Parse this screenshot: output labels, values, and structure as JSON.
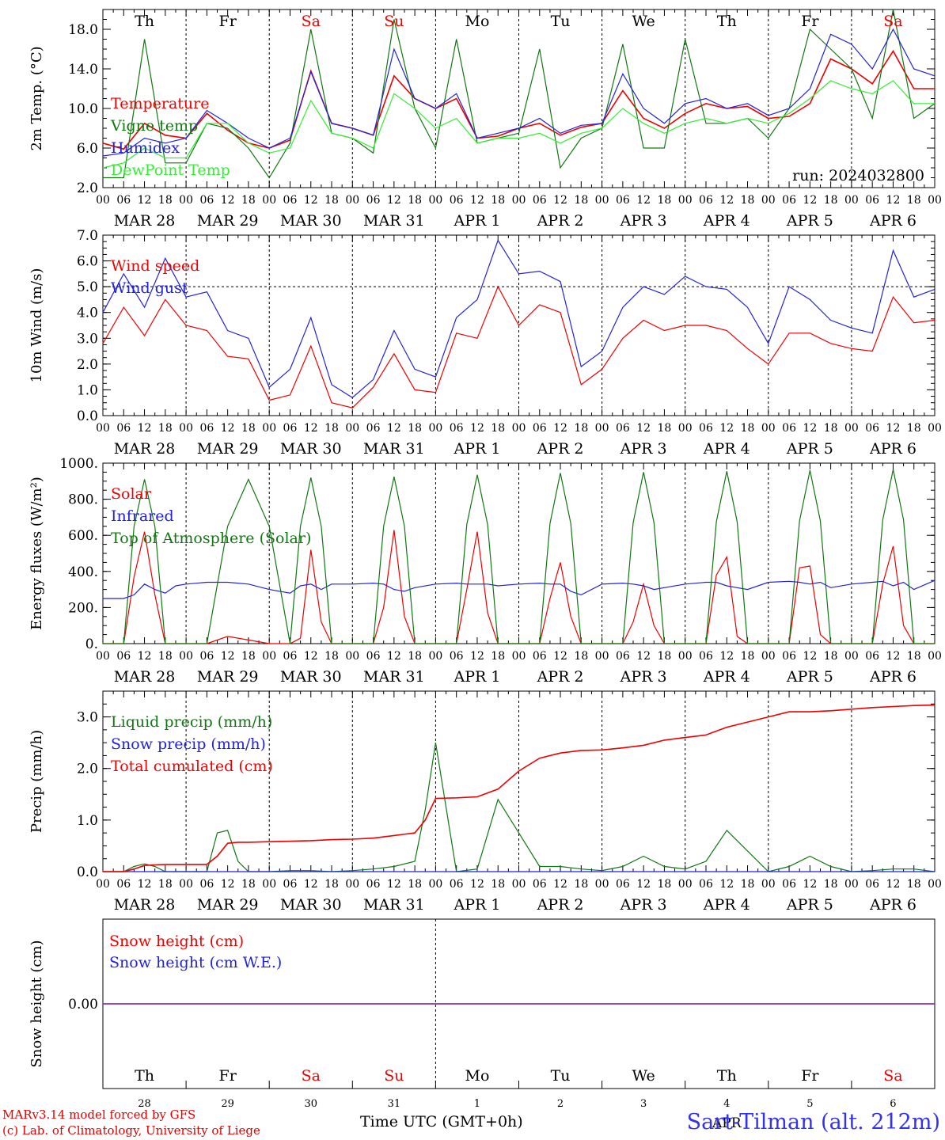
{
  "chart_data": [
    {
      "type": "line",
      "ylabel": "2m Temp. (°C)",
      "ylim": [
        2.0,
        20.0
      ],
      "yticks": [
        2.0,
        6.0,
        10.0,
        14.0,
        18.0
      ],
      "ytick_labels": [
        "2.0",
        "6.0",
        "10.0",
        "14.0",
        "18.0"
      ],
      "annotation": "run: 2024032800",
      "x_hours": [
        0,
        6,
        12,
        18,
        24,
        30,
        36,
        42,
        48,
        54,
        60,
        66,
        72,
        78,
        84,
        90,
        96,
        102,
        108,
        114,
        120,
        126,
        132,
        138,
        144,
        150,
        156,
        162,
        168,
        174,
        180,
        186,
        192,
        198,
        204,
        210,
        216,
        222,
        228,
        234,
        240
      ],
      "series": [
        {
          "name": "Temperature",
          "color": "#ee0000",
          "values": [
            6.5,
            5.9,
            8.5,
            7.3,
            7.0,
            9.5,
            7.8,
            6.5,
            6.0,
            6.8,
            13.8,
            8.5,
            8.0,
            7.3,
            13.3,
            11.0,
            10.0,
            11.0,
            7.0,
            7.2,
            8.0,
            8.5,
            7.3,
            8.1,
            8.5,
            11.8,
            9.0,
            8.0,
            9.5,
            10.5,
            10.0,
            10.2,
            9.0,
            9.2,
            10.5,
            15.0,
            14.0,
            12.5,
            15.8,
            12.0,
            12.0
          ]
        },
        {
          "name": "Vigne temp",
          "color": "#117711",
          "values": [
            3.0,
            3.0,
            17.0,
            4.5,
            4.5,
            8.5,
            8.0,
            6.0,
            3.0,
            6.5,
            18.0,
            7.5,
            7.0,
            5.5,
            19.0,
            10.0,
            6.0,
            17.0,
            6.5,
            7.0,
            7.5,
            16.0,
            4.0,
            7.0,
            8.0,
            16.5,
            6.0,
            6.0,
            17.0,
            8.5,
            8.5,
            9.0,
            7.0,
            10.0,
            18.0,
            16.0,
            14.0,
            9.0,
            20.0,
            9.0,
            10.5
          ]
        },
        {
          "name": "Humidex",
          "color": "#2222dd",
          "values": [
            5.2,
            5.5,
            7.0,
            6.5,
            7.0,
            9.8,
            8.5,
            7.0,
            6.0,
            7.0,
            13.7,
            8.5,
            8.0,
            7.3,
            16.0,
            11.0,
            10.0,
            11.5,
            7.0,
            7.5,
            8.0,
            9.0,
            7.5,
            8.3,
            8.5,
            13.5,
            10.0,
            8.5,
            10.5,
            11.0,
            10.0,
            10.5,
            9.3,
            10.0,
            12.0,
            17.5,
            16.5,
            14.0,
            18.0,
            14.0,
            13.3
          ]
        },
        {
          "name": "DewPoint Temp",
          "color": "#33ee33",
          "values": [
            4.0,
            4.5,
            6.0,
            5.0,
            5.0,
            8.5,
            8.5,
            6.5,
            5.5,
            6.0,
            10.8,
            7.5,
            7.0,
            6.0,
            11.5,
            10.0,
            8.0,
            9.0,
            6.5,
            7.0,
            7.0,
            7.5,
            6.5,
            7.5,
            8.0,
            10.0,
            8.5,
            7.5,
            8.5,
            9.0,
            8.5,
            9.0,
            8.5,
            9.5,
            11.0,
            12.8,
            12.0,
            11.5,
            12.8,
            10.5,
            10.5
          ]
        }
      ]
    },
    {
      "type": "line",
      "ylabel": "10m Wind (m/s)",
      "ylim": [
        0.0,
        7.0
      ],
      "yticks": [
        0,
        1,
        2,
        3,
        4,
        5,
        6,
        7
      ],
      "ytick_labels": [
        "0.0",
        "1.0",
        "2.0",
        "3.0",
        "4.0",
        "5.0",
        "6.0",
        "7.0"
      ],
      "reference_line": 5.0,
      "x_hours": [
        0,
        6,
        12,
        18,
        24,
        30,
        36,
        42,
        48,
        54,
        60,
        66,
        72,
        78,
        84,
        90,
        96,
        102,
        108,
        114,
        120,
        126,
        132,
        138,
        144,
        150,
        156,
        162,
        168,
        174,
        180,
        186,
        192,
        198,
        204,
        210,
        216,
        222,
        228,
        234,
        240
      ],
      "series": [
        {
          "name": "Wind speed",
          "color": "#ee0000",
          "values": [
            2.8,
            4.2,
            3.1,
            4.5,
            3.5,
            3.3,
            2.3,
            2.2,
            0.6,
            0.8,
            2.7,
            0.5,
            0.3,
            1.1,
            2.4,
            1.0,
            0.9,
            3.2,
            3.0,
            5.0,
            3.5,
            4.3,
            4.0,
            1.2,
            1.8,
            3.0,
            3.7,
            3.3,
            3.5,
            3.5,
            3.3,
            2.6,
            2.0,
            3.2,
            3.2,
            2.8,
            2.6,
            2.5,
            4.6,
            3.6,
            3.7
          ]
        },
        {
          "name": "Wind gust",
          "color": "#2222dd",
          "values": [
            4.0,
            5.5,
            4.2,
            6.1,
            4.6,
            4.8,
            3.3,
            3.0,
            1.1,
            1.8,
            3.8,
            1.2,
            0.7,
            1.4,
            3.3,
            1.8,
            1.5,
            3.8,
            4.5,
            6.8,
            5.5,
            5.6,
            5.2,
            1.9,
            2.5,
            4.2,
            5.0,
            4.7,
            5.4,
            5.0,
            4.9,
            4.2,
            2.8,
            5.0,
            4.5,
            3.7,
            3.4,
            3.2,
            6.4,
            4.6,
            4.9
          ]
        }
      ]
    },
    {
      "type": "line",
      "ylabel": "Energy fluxes (W/m²)",
      "ylim": [
        0,
        1000
      ],
      "yticks": [
        0,
        200,
        400,
        600,
        800,
        1000
      ],
      "ytick_labels": [
        "0.",
        "200.",
        "400.",
        "600.",
        "800.",
        "1000."
      ],
      "x_hours": [
        0,
        6,
        9,
        12,
        15,
        18,
        21,
        24,
        30,
        36,
        42,
        48,
        54,
        57,
        60,
        63,
        66,
        72,
        78,
        81,
        84,
        87,
        90,
        96,
        102,
        105,
        108,
        111,
        114,
        120,
        126,
        129,
        132,
        135,
        138,
        144,
        150,
        153,
        156,
        159,
        162,
        168,
        174,
        177,
        180,
        183,
        186,
        192,
        198,
        201,
        204,
        207,
        210,
        216,
        222,
        225,
        228,
        231,
        234,
        240
      ],
      "series": [
        {
          "name": "Solar",
          "color": "#ee0000",
          "values": [
            0,
            0,
            370,
            620,
            270,
            0,
            0,
            0,
            0,
            40,
            20,
            0,
            0,
            30,
            520,
            120,
            0,
            0,
            0,
            200,
            630,
            150,
            0,
            0,
            0,
            300,
            620,
            170,
            0,
            0,
            0,
            250,
            450,
            150,
            0,
            0,
            0,
            120,
            330,
            100,
            0,
            0,
            0,
            380,
            480,
            40,
            0,
            0,
            0,
            420,
            430,
            50,
            0,
            0,
            0,
            330,
            540,
            100,
            0,
            0
          ]
        },
        {
          "name": "Infrared",
          "color": "#2222dd",
          "values": [
            250,
            250,
            270,
            330,
            300,
            280,
            320,
            330,
            340,
            340,
            330,
            300,
            280,
            320,
            330,
            300,
            330,
            330,
            335,
            330,
            300,
            290,
            310,
            330,
            335,
            330,
            330,
            330,
            320,
            330,
            335,
            330,
            330,
            290,
            270,
            330,
            335,
            330,
            320,
            300,
            310,
            330,
            340,
            340,
            320,
            310,
            300,
            340,
            345,
            340,
            330,
            340,
            310,
            330,
            340,
            345,
            320,
            340,
            300,
            350
          ]
        },
        {
          "name": "Top of Atmosphere (Solar)",
          "color": "#117711",
          "values": [
            0,
            0,
            650,
            910,
            650,
            0,
            0,
            0,
            0,
            650,
            910,
            650,
            0,
            650,
            920,
            650,
            0,
            0,
            0,
            650,
            925,
            650,
            0,
            0,
            0,
            660,
            935,
            660,
            0,
            0,
            0,
            665,
            945,
            665,
            0,
            0,
            0,
            670,
            950,
            670,
            0,
            0,
            0,
            675,
            955,
            675,
            0,
            0,
            0,
            680,
            960,
            680,
            0,
            0,
            0,
            685,
            965,
            685,
            0,
            0
          ]
        }
      ]
    },
    {
      "type": "line",
      "ylabel": "Precip (mm/h)",
      "ylim": [
        0.0,
        3.5
      ],
      "yticks": [
        0,
        1,
        2,
        3
      ],
      "ytick_labels": [
        "0.0",
        "1.0",
        "2.0",
        "3.0"
      ],
      "x_hours": [
        0,
        6,
        9,
        12,
        15,
        18,
        24,
        30,
        33,
        36,
        39,
        42,
        48,
        54,
        60,
        66,
        72,
        78,
        84,
        90,
        93,
        96,
        102,
        108,
        114,
        120,
        126,
        132,
        138,
        144,
        150,
        156,
        162,
        168,
        174,
        180,
        186,
        192,
        198,
        204,
        210,
        216,
        222,
        228,
        234,
        240
      ],
      "series": [
        {
          "name": "Liquid precip (mm/h)",
          "color": "#117711",
          "values": [
            0,
            0,
            0.1,
            0.15,
            0.1,
            0,
            0,
            0,
            0.75,
            0.8,
            0.2,
            0,
            0,
            0.02,
            0.02,
            0,
            0.02,
            0.05,
            0.1,
            0.2,
            1.2,
            2.5,
            0,
            0.05,
            1.4,
            0.75,
            0.1,
            0.1,
            0.05,
            0.02,
            0.1,
            0.3,
            0.1,
            0.05,
            0.2,
            0.8,
            0.4,
            0,
            0.1,
            0.3,
            0.1,
            0,
            0.02,
            0.05,
            0.05,
            0
          ]
        },
        {
          "name": "Snow precip (mm/h)",
          "color": "#2222dd",
          "values": [
            0,
            0,
            0,
            0,
            0,
            0,
            0,
            0,
            0,
            0,
            0,
            0,
            0,
            0,
            0,
            0,
            0,
            0,
            0,
            0,
            0,
            0,
            0,
            0,
            0,
            0,
            0,
            0,
            0,
            0,
            0,
            0,
            0,
            0,
            0,
            0,
            0,
            0,
            0,
            0,
            0,
            0,
            0,
            0,
            0,
            0
          ]
        },
        {
          "name": "Total cumulated (cm)",
          "color": "#ee0000",
          "values": [
            0,
            0,
            0.05,
            0.12,
            0.13,
            0.14,
            0.14,
            0.14,
            0.3,
            0.55,
            0.57,
            0.57,
            0.58,
            0.59,
            0.6,
            0.62,
            0.63,
            0.65,
            0.7,
            0.75,
            1.0,
            1.42,
            1.43,
            1.45,
            1.6,
            1.95,
            2.2,
            2.3,
            2.35,
            2.36,
            2.4,
            2.45,
            2.55,
            2.6,
            2.65,
            2.8,
            2.9,
            3.0,
            3.1,
            3.1,
            3.12,
            3.15,
            3.18,
            3.2,
            3.22,
            3.23
          ]
        }
      ]
    },
    {
      "type": "line",
      "ylabel": "Snow height (cm)",
      "yticks": [
        0
      ],
      "ytick_labels": [
        "0.00"
      ],
      "x_hours": [
        0,
        240
      ],
      "series": [
        {
          "name": "Snow height (cm)",
          "color": "#ee0000",
          "values": [
            0,
            0
          ]
        },
        {
          "name": "Snow height (cm W.E.)",
          "color": "#2222dd",
          "values": [
            0,
            0
          ]
        }
      ]
    }
  ],
  "x_axis": {
    "hour_ticks": [
      "00",
      "06",
      "12",
      "18"
    ],
    "final_tick": "00",
    "day_labels": [
      "MAR 28",
      "MAR 29",
      "MAR 30",
      "MAR 31",
      "APR  1",
      "APR  2",
      "APR  3",
      "APR  4",
      "APR  5",
      "APR  6"
    ],
    "weekdays": [
      {
        "label": "Th",
        "color": "#000000"
      },
      {
        "label": "Fr",
        "color": "#000000"
      },
      {
        "label": "Sa",
        "color": "#ee0000"
      },
      {
        "label": "Su",
        "color": "#ee0000"
      },
      {
        "label": "Mo",
        "color": "#000000"
      },
      {
        "label": "Tu",
        "color": "#000000"
      },
      {
        "label": "We",
        "color": "#000000"
      },
      {
        "label": "Th",
        "color": "#000000"
      },
      {
        "label": "Fr",
        "color": "#000000"
      },
      {
        "label": "Sa",
        "color": "#ee0000"
      }
    ],
    "day_numbers": [
      "28",
      "29",
      "30",
      "31",
      "1",
      "2",
      "3",
      "4",
      "5",
      "6"
    ],
    "month_label": "APR",
    "title": "Time UTC (GMT+0h)"
  },
  "footer": {
    "credit_line1": "MARv3.14 model forced by GFS",
    "credit_line2": "(c) Lab. of Climatology, University of Liege",
    "station": "Sart-Tilman (alt. 212m)"
  }
}
